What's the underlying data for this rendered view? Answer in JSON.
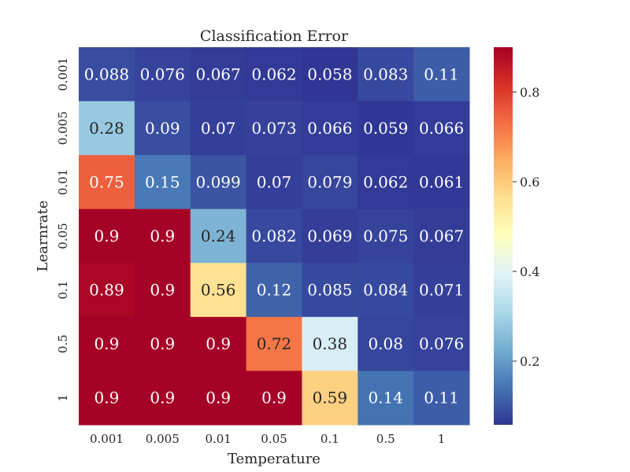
{
  "chart_data": {
    "type": "heatmap",
    "title": "Classification Error",
    "xlabel": "Temperature",
    "ylabel": "Learnrate",
    "x_categories": [
      "0.001",
      "0.005",
      "0.01",
      "0.05",
      "0.1",
      "0.5",
      "1"
    ],
    "y_categories": [
      "0.001",
      "0.005",
      "0.01",
      "0.05",
      "0.1",
      "0.5",
      "1"
    ],
    "values": [
      [
        0.088,
        0.076,
        0.067,
        0.062,
        0.058,
        0.083,
        0.11
      ],
      [
        0.28,
        0.09,
        0.07,
        0.073,
        0.066,
        0.059,
        0.066
      ],
      [
        0.75,
        0.15,
        0.099,
        0.07,
        0.079,
        0.062,
        0.061
      ],
      [
        0.9,
        0.9,
        0.24,
        0.082,
        0.069,
        0.075,
        0.067
      ],
      [
        0.89,
        0.9,
        0.56,
        0.12,
        0.085,
        0.084,
        0.071
      ],
      [
        0.9,
        0.9,
        0.9,
        0.72,
        0.38,
        0.08,
        0.076
      ],
      [
        0.9,
        0.9,
        0.9,
        0.9,
        0.59,
        0.14,
        0.11
      ]
    ],
    "value_labels": [
      [
        "0.088",
        "0.076",
        "0.067",
        "0.062",
        "0.058",
        "0.083",
        "0.11"
      ],
      [
        "0.28",
        "0.09",
        "0.07",
        "0.073",
        "0.066",
        "0.059",
        "0.066"
      ],
      [
        "0.75",
        "0.15",
        "0.099",
        "0.07",
        "0.079",
        "0.062",
        "0.061"
      ],
      [
        "0.9",
        "0.9",
        "0.24",
        "0.082",
        "0.069",
        "0.075",
        "0.067"
      ],
      [
        "0.89",
        "0.9",
        "0.56",
        "0.12",
        "0.085",
        "0.084",
        "0.071"
      ],
      [
        "0.9",
        "0.9",
        "0.9",
        "0.72",
        "0.38",
        "0.08",
        "0.076"
      ],
      [
        "0.9",
        "0.9",
        "0.9",
        "0.9",
        "0.59",
        "0.14",
        "0.11"
      ]
    ],
    "colormap": "RdYlBu_r",
    "colormap_stops": [
      "#313695",
      "#4575b4",
      "#74add1",
      "#abd9e9",
      "#e0f3f8",
      "#ffffbf",
      "#fee090",
      "#fdae61",
      "#f46d43",
      "#d73027",
      "#a50026"
    ],
    "vmin": 0.058,
    "vmax": 0.9,
    "colorbar": {
      "ticks": [
        0.2,
        0.4,
        0.6,
        0.8
      ],
      "tick_labels": [
        "0.2",
        "0.4",
        "0.6",
        "0.8"
      ]
    },
    "grid": false,
    "legend": "colorbar-right"
  }
}
